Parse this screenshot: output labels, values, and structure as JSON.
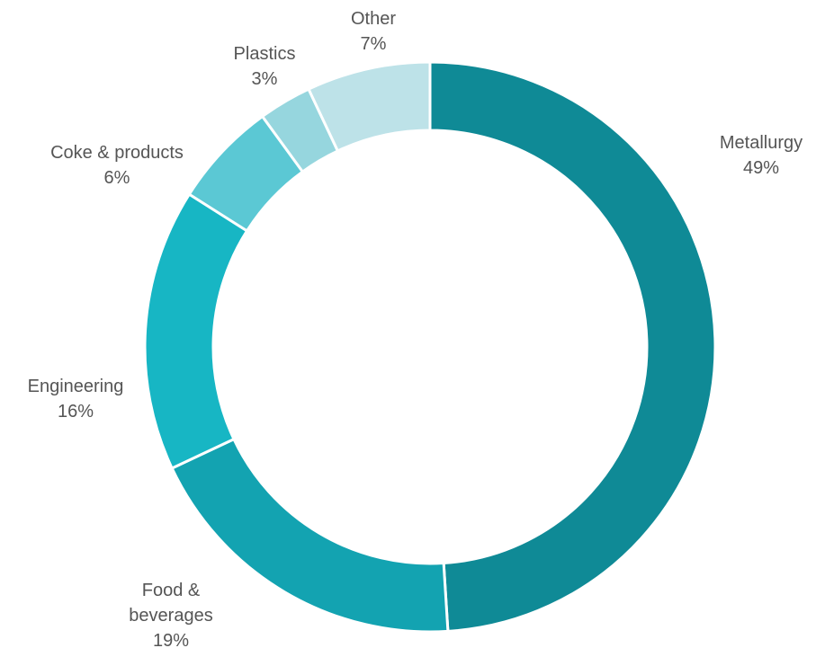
{
  "chart_data": {
    "type": "pie",
    "donut": true,
    "legend": "none",
    "slices": [
      {
        "name": "Metallurgy",
        "name_lines": [
          "Metallurgy"
        ],
        "value": 49,
        "label": "49%",
        "color": "#0f8a96"
      },
      {
        "name": "Food & beverages",
        "name_lines": [
          "Food &",
          "beverages"
        ],
        "value": 19,
        "label": "19%",
        "color": "#13a3b1"
      },
      {
        "name": "Engineering",
        "name_lines": [
          "Engineering"
        ],
        "value": 16,
        "label": "16%",
        "color": "#17b6c4"
      },
      {
        "name": "Coke & products",
        "name_lines": [
          "Coke & products"
        ],
        "value": 6,
        "label": "6%",
        "color": "#5bc8d4"
      },
      {
        "name": "Plastics",
        "name_lines": [
          "Plastics"
        ],
        "value": 3,
        "label": "3%",
        "color": "#96d6de"
      },
      {
        "name": "Other",
        "name_lines": [
          "Other"
        ],
        "value": 7,
        "label": "7%",
        "color": "#bde2e8"
      }
    ]
  }
}
